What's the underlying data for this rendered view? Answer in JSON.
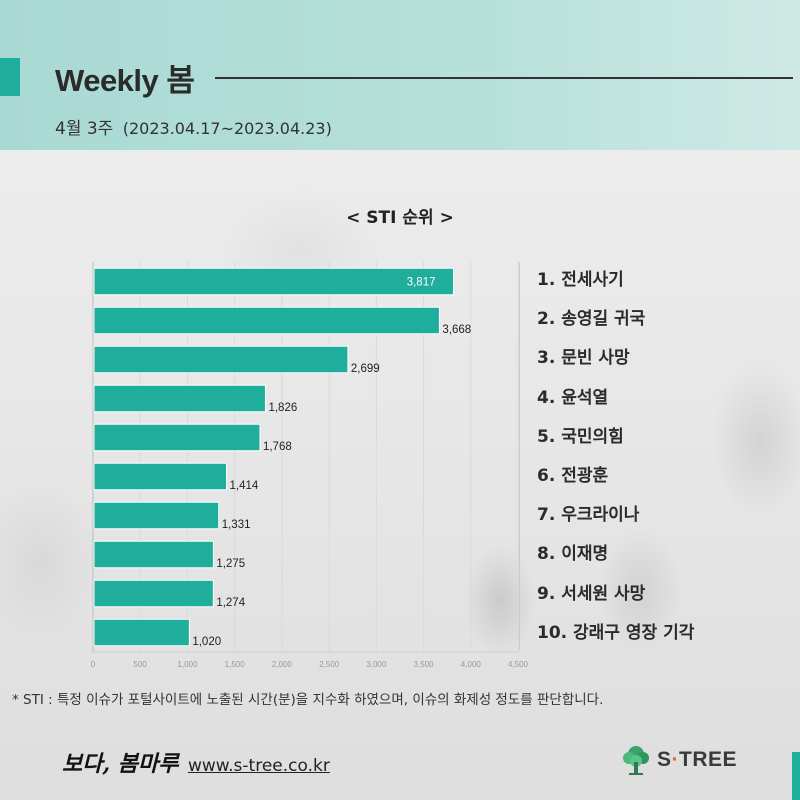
{
  "header": {
    "title": "Weekly 봄",
    "week_label": "4월 3주",
    "date_range": "(2023.04.17~2023.04.23)"
  },
  "chart_title": "< STI 순위 >",
  "chart_data": {
    "type": "bar",
    "orientation": "horizontal",
    "title": "< STI 순위 >",
    "categories": [
      "1. 전세사기",
      "2. 송영길 귀국",
      "3. 문빈 사망",
      "4. 윤석열",
      "5. 국민의힘",
      "6. 전광훈",
      "7. 우크라이나",
      "8. 이재명",
      "9. 서세원 사망",
      "10. 강래구 영장 기각"
    ],
    "values": [
      3817,
      3668,
      2699,
      1826,
      1768,
      1414,
      1331,
      1275,
      1274,
      1020
    ],
    "value_labels": [
      "3,817",
      "3,668",
      "2,699",
      "1,826",
      "1,768",
      "1,414",
      "1,331",
      "1,275",
      "1,274",
      "1,020"
    ],
    "xlim": [
      0,
      4500
    ],
    "x_ticks": [
      0,
      500,
      1000,
      1500,
      2000,
      2500,
      3000,
      3500,
      4000,
      4500
    ],
    "x_tick_labels": [
      "0",
      "500",
      "1,000",
      "1,500",
      "2,000",
      "2,500",
      "3,000",
      "3,500",
      "4,000",
      "4,500"
    ],
    "grid": true,
    "bar_color": "#1fae9b",
    "legend_position": "right"
  },
  "footnote": "* STI : 특정 이슈가 포털사이트에 노출된 시간(분)을 지수화 하였으며, 이슈의 화제성 정도를 판단합니다.",
  "footer": {
    "brand_script": "보다, 봄마루",
    "website": "www.s-tree.co.kr",
    "logo_text_s": "S",
    "logo_text_dot": "·",
    "logo_text_tree": "TREE"
  },
  "colors": {
    "accent": "#1fae9b",
    "header_bg": "#b7e0da",
    "logo_dot": "#e0623b"
  }
}
